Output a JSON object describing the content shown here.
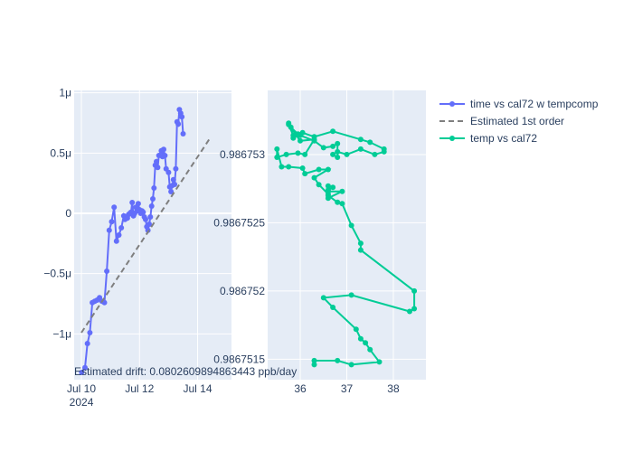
{
  "chart_data": [
    {
      "type": "line",
      "xaxis": {
        "type": "date",
        "range": [
          "2024-07-09T18:00",
          "2024-07-15T04:00"
        ],
        "ticks": [
          {
            "value": "2024-07-10T00:00",
            "label": "Jul 10",
            "sublabel": "2024"
          },
          {
            "value": "2024-07-12T00:00",
            "label": "Jul 12"
          },
          {
            "value": "2024-07-14T00:00",
            "label": "Jul 14"
          }
        ]
      },
      "yaxis": {
        "range": [
          -1.38e-06,
          1.02e-06
        ],
        "ticks": [
          {
            "value": 1e-06,
            "label": "1μ"
          },
          {
            "value": 5e-07,
            "label": "0.5μ"
          },
          {
            "value": 0,
            "label": "0"
          },
          {
            "value": -5e-07,
            "label": "−0.5μ"
          },
          {
            "value": -1e-06,
            "label": "−1μ"
          }
        ]
      },
      "grid": true,
      "series": [
        {
          "name": "time vs cal72 w tempcomp",
          "color": "#636efa",
          "mode": "lines+markers",
          "points": [
            [
              "2024-07-10T00:10",
              -1.32e-06
            ],
            [
              "2024-07-10T03:00",
              -1.28e-06
            ],
            [
              "2024-07-10T05:00",
              -1.08e-06
            ],
            [
              "2024-07-10T07:00",
              -9.9e-07
            ],
            [
              "2024-07-10T09:00",
              -7.4e-07
            ],
            [
              "2024-07-10T11:00",
              -7.3e-07
            ],
            [
              "2024-07-10T13:00",
              -7.2e-07
            ],
            [
              "2024-07-10T15:00",
              -7e-07
            ],
            [
              "2024-07-10T17:00",
              -7.3e-07
            ],
            [
              "2024-07-10T19:00",
              -7.4e-07
            ],
            [
              "2024-07-10T21:00",
              -4.8e-07
            ],
            [
              "2024-07-10T23:00",
              -1.4e-07
            ],
            [
              "2024-07-11T01:00",
              -7e-08
            ],
            [
              "2024-07-11T03:00",
              5e-08
            ],
            [
              "2024-07-11T05:00",
              -2.3e-07
            ],
            [
              "2024-07-11T07:00",
              -1.8e-07
            ],
            [
              "2024-07-11T09:00",
              -1.2e-07
            ],
            [
              "2024-07-11T11:00",
              -2e-08
            ],
            [
              "2024-07-11T12:00",
              -5e-08
            ],
            [
              "2024-07-11T13:00",
              -3e-08
            ],
            [
              "2024-07-11T14:00",
              -4e-08
            ],
            [
              "2024-07-11T15:00",
              -1e-08
            ],
            [
              "2024-07-11T16:00",
              0.0
            ],
            [
              "2024-07-11T17:00",
              1e-08
            ],
            [
              "2024-07-11T18:00",
              9e-08
            ],
            [
              "2024-07-11T19:00",
              -2e-08
            ],
            [
              "2024-07-11T20:00",
              0.0
            ],
            [
              "2024-07-11T21:00",
              5e-08
            ],
            [
              "2024-07-11T22:00",
              2e-08
            ],
            [
              "2024-07-11T23:00",
              8e-08
            ],
            [
              "2024-07-12T00:00",
              3e-08
            ],
            [
              "2024-07-12T01:00",
              0.0
            ],
            [
              "2024-07-12T02:00",
              2e-08
            ],
            [
              "2024-07-12T03:00",
              1e-08
            ],
            [
              "2024-07-12T04:00",
              -3e-08
            ],
            [
              "2024-07-12T05:00",
              -5e-08
            ],
            [
              "2024-07-12T06:00",
              -1.1e-07
            ],
            [
              "2024-07-12T07:00",
              -1.4e-07
            ],
            [
              "2024-07-12T08:00",
              -9e-08
            ],
            [
              "2024-07-12T09:00",
              -3e-08
            ],
            [
              "2024-07-12T10:00",
              6e-08
            ],
            [
              "2024-07-12T11:00",
              1.2e-07
            ],
            [
              "2024-07-12T12:00",
              2.1e-07
            ],
            [
              "2024-07-12T13:00",
              4e-07
            ],
            [
              "2024-07-12T14:00",
              4.3e-07
            ],
            [
              "2024-07-12T15:00",
              3.8e-07
            ],
            [
              "2024-07-12T16:00",
              4.8e-07
            ],
            [
              "2024-07-12T18:00",
              5.2e-07
            ],
            [
              "2024-07-12T19:00",
              4.7e-07
            ],
            [
              "2024-07-12T20:00",
              5.3e-07
            ],
            [
              "2024-07-12T21:00",
              4.8e-07
            ],
            [
              "2024-07-12T22:00",
              3.7e-07
            ],
            [
              "2024-07-13T00:00",
              3.4e-07
            ],
            [
              "2024-07-13T01:00",
              2.2e-07
            ],
            [
              "2024-07-13T02:00",
              1.8e-07
            ],
            [
              "2024-07-13T03:00",
              2.3e-07
            ],
            [
              "2024-07-13T04:00",
              2.8e-07
            ],
            [
              "2024-07-13T05:00",
              2.4e-07
            ],
            [
              "2024-07-13T06:00",
              3.7e-07
            ],
            [
              "2024-07-13T07:00",
              7.6e-07
            ],
            [
              "2024-07-13T08:00",
              7.4e-07
            ],
            [
              "2024-07-13T09:00",
              8.6e-07
            ],
            [
              "2024-07-13T10:00",
              8.3e-07
            ],
            [
              "2024-07-13T11:00",
              8e-07
            ],
            [
              "2024-07-13T12:00",
              6.6e-07
            ]
          ]
        },
        {
          "name": "Estimated 1st order",
          "color": "#7f7f7f",
          "mode": "dashed-line",
          "points": [
            [
              "2024-07-10T00:00",
              -9.9e-07
            ],
            [
              "2024-07-14T10:00",
              6.2e-07
            ]
          ]
        }
      ],
      "annotations": [
        {
          "text": "Estimated drift:  0.0802609894863443 ppb/day"
        }
      ]
    },
    {
      "type": "scatter",
      "xaxis": {
        "range": [
          35.3,
          38.7
        ],
        "ticks": [
          {
            "value": 36,
            "label": "36"
          },
          {
            "value": 37,
            "label": "37"
          },
          {
            "value": 38,
            "label": "38"
          }
        ]
      },
      "yaxis": {
        "range": [
          0.98675135,
          0.98675347
        ],
        "ticks": [
          {
            "value": 0.986753,
            "label": "0.986753"
          },
          {
            "value": 0.9867525,
            "label": "0.9867525"
          },
          {
            "value": 0.986752,
            "label": "0.986752"
          },
          {
            "value": 0.9867515,
            "label": "0.9867515"
          }
        ]
      },
      "grid": true,
      "series": [
        {
          "name": "temp vs cal72",
          "color": "#00cc96",
          "mode": "lines+markers",
          "points": [
            [
              35.75,
              0.98675323
            ],
            [
              35.8,
              0.9867532
            ],
            [
              35.95,
              0.98675315
            ],
            [
              35.85,
              0.98675312
            ],
            [
              36.05,
              0.98675316
            ],
            [
              36.3,
              0.98675313
            ],
            [
              36.7,
              0.98675317
            ],
            [
              37.3,
              0.98675311
            ],
            [
              37.5,
              0.98675309
            ],
            [
              37.8,
              0.98675304
            ],
            [
              37.8,
              0.98675302
            ],
            [
              37.6,
              0.986753
            ],
            [
              37.3,
              0.98675304
            ],
            [
              37.0,
              0.986753
            ],
            [
              36.8,
              0.98675302
            ],
            [
              36.7,
              0.986753
            ],
            [
              36.8,
              0.98675298
            ],
            [
              36.8,
              0.98675308
            ],
            [
              36.7,
              0.98675306
            ],
            [
              36.5,
              0.98675305
            ],
            [
              36.3,
              0.9867531
            ],
            [
              36.0,
              0.98675314
            ],
            [
              35.85,
              0.98675314
            ],
            [
              35.75,
              0.98675322
            ],
            [
              36.0,
              0.9867531
            ],
            [
              36.3,
              0.98675311
            ],
            [
              36.1,
              0.986753
            ],
            [
              35.95,
              0.98675301
            ],
            [
              35.7,
              0.986753
            ],
            [
              35.5,
              0.98675298
            ],
            [
              35.5,
              0.98675304
            ],
            [
              35.6,
              0.98675291
            ],
            [
              35.75,
              0.98675291
            ],
            [
              36.05,
              0.9867529
            ],
            [
              36.1,
              0.98675286
            ],
            [
              36.4,
              0.98675289
            ],
            [
              36.6,
              0.98675289
            ],
            [
              36.3,
              0.98675283
            ],
            [
              36.4,
              0.98675278
            ],
            [
              36.6,
              0.98675271
            ],
            [
              36.6,
              0.98675274
            ],
            [
              36.7,
              0.98675276
            ],
            [
              36.6,
              0.98675277
            ],
            [
              36.6,
              0.98675273
            ],
            [
              36.9,
              0.98675273
            ],
            [
              36.6,
              0.98675268
            ],
            [
              36.6,
              0.9867527
            ],
            [
              36.8,
              0.98675265
            ],
            [
              36.9,
              0.98675264
            ],
            [
              37.1,
              0.98675248
            ],
            [
              37.3,
              0.98675235
            ],
            [
              37.3,
              0.9867523
            ],
            [
              38.45,
              0.986752
            ],
            [
              38.45,
              0.98675187
            ],
            [
              38.35,
              0.98675185
            ],
            [
              37.1,
              0.98675197
            ],
            [
              36.5,
              0.98675195
            ],
            [
              36.7,
              0.98675188
            ],
            [
              37.2,
              0.98675172
            ],
            [
              37.3,
              0.98675165
            ],
            [
              37.4,
              0.98675162
            ],
            [
              37.5,
              0.98675157
            ],
            [
              37.7,
              0.98675148
            ],
            [
              37.1,
              0.98675146
            ],
            [
              36.8,
              0.98675149
            ],
            [
              36.3,
              0.98675149
            ],
            [
              36.3,
              0.98675146
            ]
          ]
        }
      ]
    }
  ],
  "legend": {
    "placement": "top-right",
    "items": [
      {
        "label": "time vs cal72 w tempcomp",
        "color": "#636efa",
        "style": "line+marker"
      },
      {
        "label": "Estimated 1st order",
        "color": "#7f7f7f",
        "style": "dash"
      },
      {
        "label": "temp vs cal72",
        "color": "#00cc96",
        "style": "line+marker"
      }
    ]
  },
  "colors": {
    "plot_bg": "#e5ecf6",
    "grid": "#ffffff",
    "text": "#2a3f5f"
  }
}
